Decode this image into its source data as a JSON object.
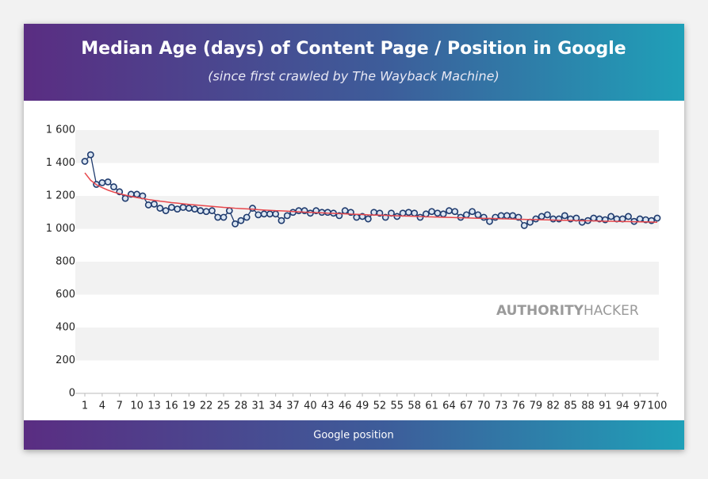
{
  "chart_data": {
    "type": "line",
    "title": "Median Age (days) of Content Page / Position in Google",
    "subtitle": "(since first crawled by The Wayback Machine)",
    "x_label": "Google position",
    "watermark": [
      "AUTHORITY",
      "HACKER"
    ],
    "x": [
      1,
      2,
      3,
      4,
      5,
      6,
      7,
      8,
      9,
      10,
      11,
      12,
      13,
      14,
      15,
      16,
      17,
      18,
      19,
      20,
      21,
      22,
      23,
      24,
      25,
      26,
      27,
      28,
      29,
      30,
      31,
      32,
      33,
      34,
      35,
      36,
      37,
      38,
      39,
      40,
      41,
      42,
      43,
      44,
      45,
      46,
      47,
      48,
      49,
      50,
      51,
      52,
      53,
      54,
      55,
      56,
      57,
      58,
      59,
      60,
      61,
      62,
      63,
      64,
      65,
      66,
      67,
      68,
      69,
      70,
      71,
      72,
      73,
      74,
      75,
      76,
      77,
      78,
      79,
      80,
      81,
      82,
      83,
      84,
      85,
      86,
      87,
      88,
      89,
      90,
      91,
      92,
      93,
      94,
      95,
      96,
      97,
      98,
      99,
      100
    ],
    "series": [
      {
        "color": "#1f3b6e",
        "marker": true,
        "values": [
          1410,
          1450,
          1270,
          1280,
          1285,
          1255,
          1225,
          1185,
          1210,
          1210,
          1200,
          1145,
          1150,
          1125,
          1110,
          1130,
          1120,
          1130,
          1125,
          1120,
          1110,
          1105,
          1110,
          1070,
          1070,
          1110,
          1030,
          1050,
          1070,
          1125,
          1085,
          1090,
          1090,
          1090,
          1050,
          1080,
          1100,
          1110,
          1110,
          1095,
          1110,
          1100,
          1100,
          1095,
          1080,
          1110,
          1100,
          1070,
          1075,
          1060,
          1100,
          1095,
          1070,
          1095,
          1075,
          1095,
          1100,
          1095,
          1070,
          1090,
          1105,
          1095,
          1090,
          1110,
          1105,
          1070,
          1085,
          1105,
          1085,
          1070,
          1045,
          1070,
          1080,
          1080,
          1080,
          1070,
          1020,
          1040,
          1060,
          1075,
          1085,
          1060,
          1060,
          1080,
          1060,
          1065,
          1040,
          1050,
          1065,
          1060,
          1055,
          1075,
          1060,
          1060,
          1075,
          1045,
          1060,
          1055,
          1050,
          1065
        ]
      },
      {
        "color": "#e8474c",
        "marker": false,
        "values": [
          1340,
          1295,
          1268,
          1250,
          1235,
          1223,
          1213,
          1205,
          1197,
          1190,
          1184,
          1178,
          1173,
          1168,
          1164,
          1159,
          1156,
          1152,
          1148,
          1145,
          1142,
          1139,
          1136,
          1133,
          1130,
          1128,
          1125,
          1123,
          1121,
          1119,
          1116,
          1114,
          1112,
          1110,
          1109,
          1107,
          1105,
          1103,
          1101,
          1100,
          1098,
          1097,
          1095,
          1094,
          1092,
          1091,
          1089,
          1088,
          1087,
          1085,
          1084,
          1083,
          1082,
          1080,
          1079,
          1078,
          1077,
          1076,
          1075,
          1073,
          1072,
          1071,
          1070,
          1069,
          1068,
          1067,
          1066,
          1065,
          1064,
          1063,
          1063,
          1062,
          1061,
          1060,
          1059,
          1058,
          1057,
          1056,
          1056,
          1055,
          1054,
          1053,
          1052,
          1052,
          1051,
          1050,
          1049,
          1049,
          1048,
          1047,
          1046,
          1046,
          1045,
          1044,
          1044,
          1043,
          1042,
          1042,
          1041,
          1040
        ]
      }
    ],
    "xlim": [
      1,
      100
    ],
    "xticks": [
      1,
      4,
      7,
      10,
      13,
      16,
      19,
      22,
      25,
      28,
      31,
      34,
      37,
      40,
      43,
      46,
      49,
      52,
      55,
      58,
      61,
      64,
      67,
      70,
      73,
      76,
      79,
      82,
      85,
      88,
      91,
      94,
      97,
      100
    ],
    "ylim": [
      0,
      1600
    ],
    "yticks": [
      0,
      200,
      400,
      600,
      800,
      {
        "value": 1000,
        "label": "1 000"
      },
      {
        "value": 1200,
        "label": "1 200"
      },
      {
        "value": 1400,
        "label": "1 400"
      },
      {
        "value": 1600,
        "label": "1 600"
      }
    ],
    "grid": "bands"
  }
}
